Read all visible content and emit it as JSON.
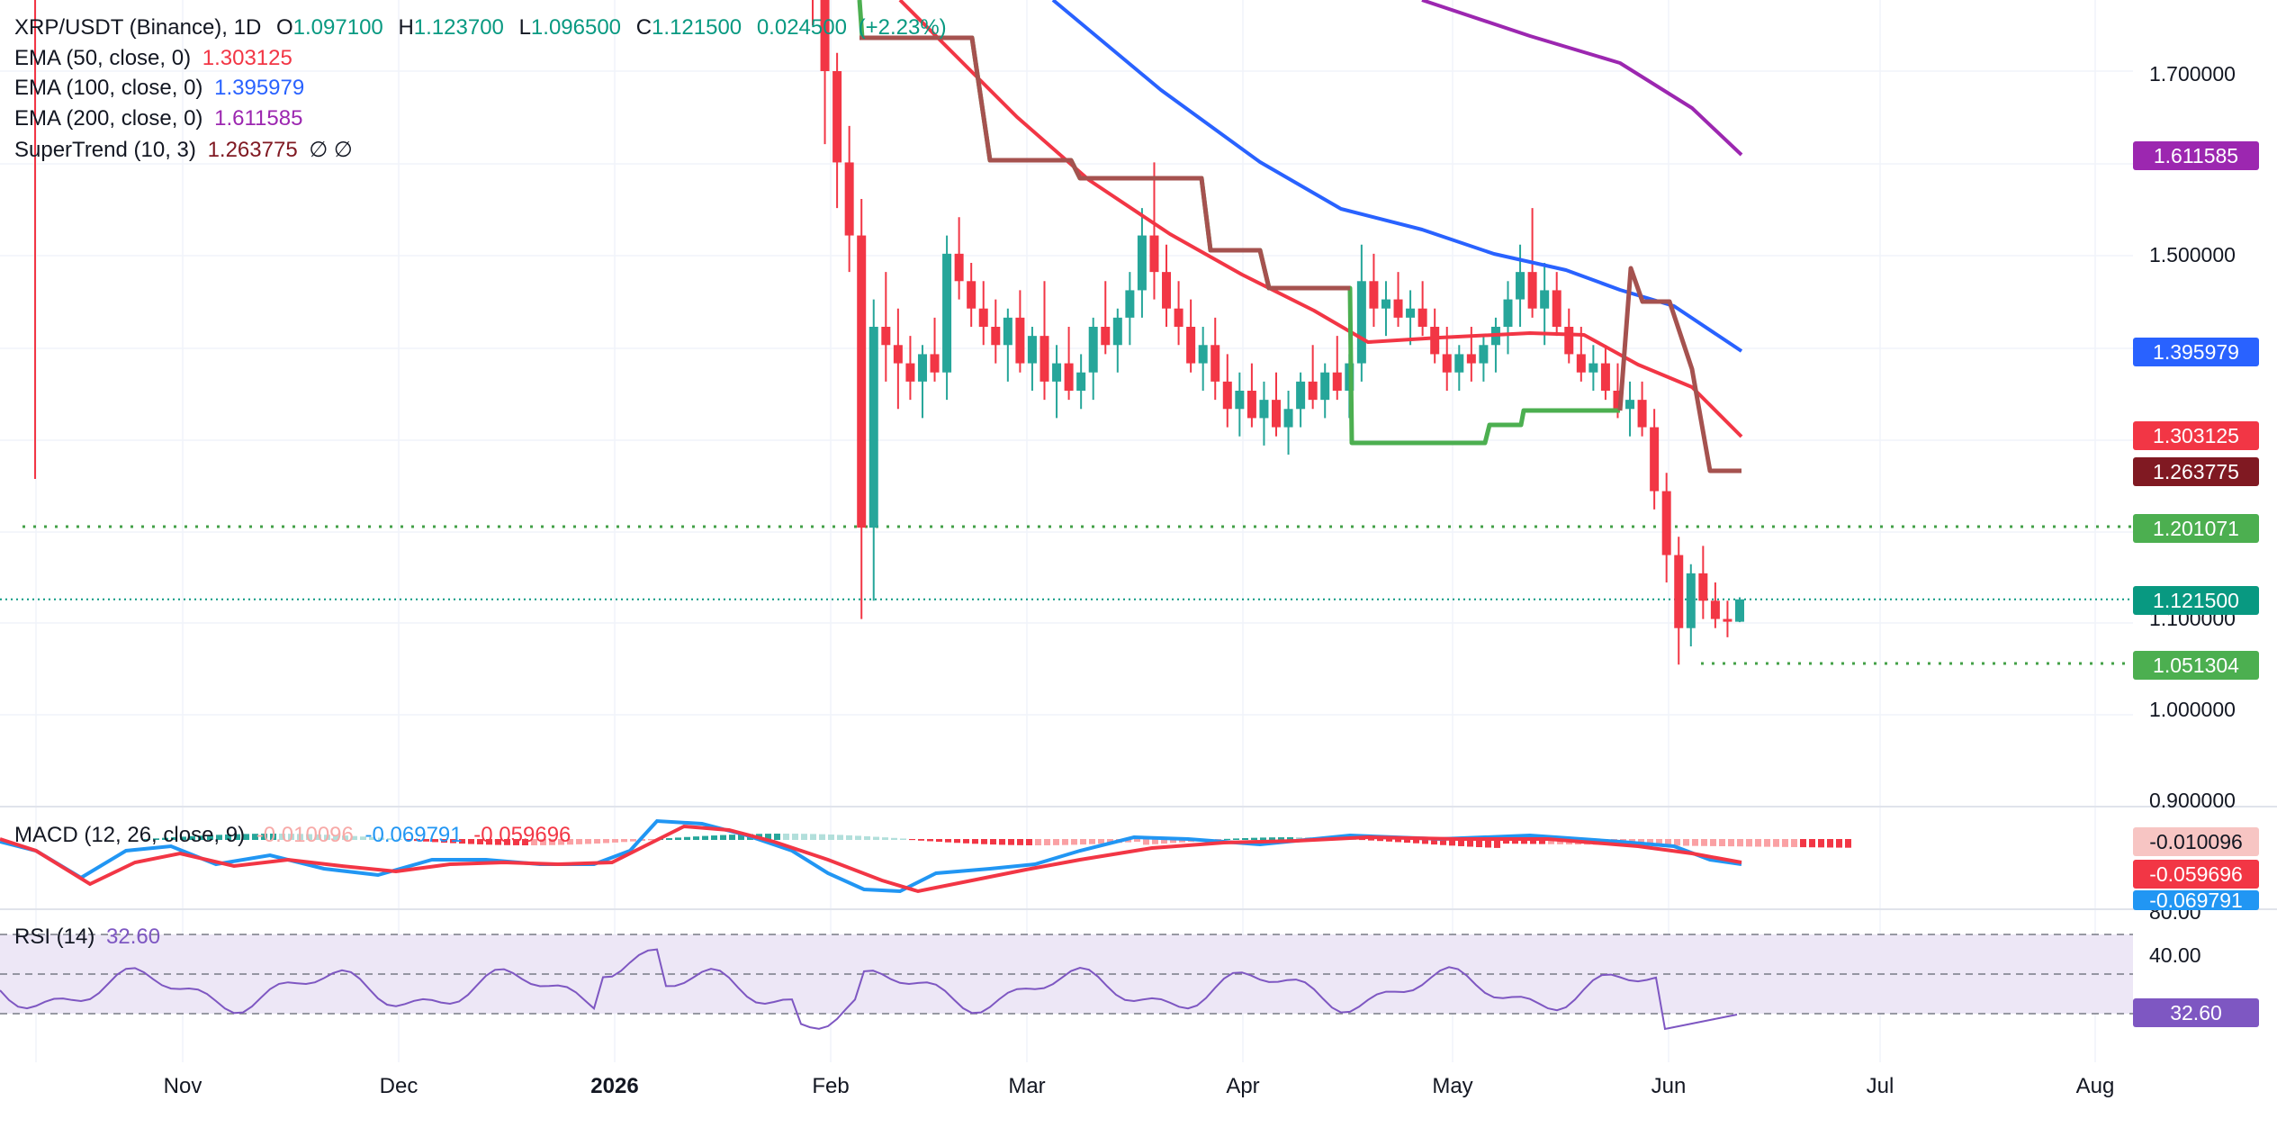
{
  "header": {
    "symbol": "XRP/USDT (Binance), 1D",
    "o_label": "O",
    "o": "1.097100",
    "h_label": "H",
    "h": "1.123700",
    "l_label": "L",
    "l": "1.096500",
    "c_label": "C",
    "c": "1.121500",
    "chg": "0.024500",
    "chg_pct": "(+2.23%)"
  },
  "indicators": {
    "ema50": {
      "label": "EMA (50, close, 0)",
      "value": "1.303125",
      "color": "#f23645"
    },
    "ema100": {
      "label": "EMA (100, close, 0)",
      "value": "1.395979",
      "color": "#2962ff"
    },
    "ema200": {
      "label": "EMA (200, close, 0)",
      "value": "1.611585",
      "color": "#9c27b0"
    },
    "supertrend": {
      "label": "SuperTrend (10, 3)",
      "value": "1.263775",
      "extra": "∅ ∅",
      "color": "#801922"
    },
    "macd": {
      "label": "MACD (12, 26, close, 9)",
      "hist": "-0.010096",
      "macd": "-0.069791",
      "signal": "-0.059696"
    },
    "rsi": {
      "label": "RSI (14)",
      "value": "32.60",
      "color": "#7e57c2"
    }
  },
  "badges": {
    "ema200": "1.611585",
    "ema100": "1.395979",
    "ema50": "1.303125",
    "supertrend": "1.263775",
    "resistance": "1.201071",
    "price": "1.121500",
    "support": "1.051304",
    "macd_hist": "-0.010096",
    "macd_signal": "-0.059696",
    "macd_line": "-0.069791",
    "rsi": "32.60"
  },
  "colors": {
    "up": "#26a69a",
    "down": "#f23645",
    "price_line": "#089981",
    "st_up": "#4caf50",
    "st_down": "#a5524f",
    "hline": "#43a047",
    "rsi_band": "#ede7f6",
    "macd_line": "#2196f3",
    "signal_line": "#f23645"
  },
  "chart_data": {
    "type": "candlestick",
    "title": "XRP/USDT (Binance), 1D",
    "y_ticks": [
      "1.700000",
      "1.500000",
      "1.100000",
      "1.000000",
      "0.900000"
    ],
    "ylim": [
      0.9,
      1.75
    ],
    "x_ticks": [
      "Nov",
      "Dec",
      "2026",
      "Feb",
      "Mar",
      "Apr",
      "May",
      "Jun",
      "Jul",
      "Aug"
    ],
    "horizontal_levels": [
      1.201071,
      1.051304
    ],
    "last_close": 1.1215,
    "ema50_last": 1.303125,
    "ema100_last": 1.395979,
    "ema200_last": 1.611585,
    "supertrend_last": 1.263775,
    "candles": [
      [
        1.92,
        1.96,
        1.75,
        1.78
      ],
      [
        1.78,
        1.8,
        1.62,
        1.7
      ],
      [
        1.7,
        1.72,
        1.55,
        1.6
      ],
      [
        1.6,
        1.64,
        1.48,
        1.52
      ],
      [
        1.52,
        1.56,
        1.1,
        1.2
      ],
      [
        1.2,
        1.45,
        1.12,
        1.42
      ],
      [
        1.42,
        1.48,
        1.36,
        1.4
      ],
      [
        1.4,
        1.44,
        1.33,
        1.38
      ],
      [
        1.38,
        1.41,
        1.34,
        1.36
      ],
      [
        1.36,
        1.4,
        1.32,
        1.39
      ],
      [
        1.39,
        1.43,
        1.36,
        1.37
      ],
      [
        1.37,
        1.52,
        1.34,
        1.5
      ],
      [
        1.5,
        1.54,
        1.45,
        1.47
      ],
      [
        1.47,
        1.49,
        1.42,
        1.44
      ],
      [
        1.44,
        1.47,
        1.4,
        1.42
      ],
      [
        1.42,
        1.45,
        1.38,
        1.4
      ],
      [
        1.4,
        1.44,
        1.36,
        1.43
      ],
      [
        1.43,
        1.46,
        1.37,
        1.38
      ],
      [
        1.38,
        1.42,
        1.35,
        1.41
      ],
      [
        1.41,
        1.47,
        1.34,
        1.36
      ],
      [
        1.36,
        1.4,
        1.32,
        1.38
      ],
      [
        1.38,
        1.42,
        1.34,
        1.35
      ],
      [
        1.35,
        1.39,
        1.33,
        1.37
      ],
      [
        1.37,
        1.43,
        1.34,
        1.42
      ],
      [
        1.42,
        1.47,
        1.39,
        1.4
      ],
      [
        1.4,
        1.44,
        1.37,
        1.43
      ],
      [
        1.43,
        1.48,
        1.4,
        1.46
      ],
      [
        1.46,
        1.55,
        1.43,
        1.52
      ],
      [
        1.52,
        1.6,
        1.45,
        1.48
      ],
      [
        1.48,
        1.51,
        1.42,
        1.44
      ],
      [
        1.44,
        1.47,
        1.4,
        1.42
      ],
      [
        1.42,
        1.45,
        1.37,
        1.38
      ],
      [
        1.38,
        1.42,
        1.35,
        1.4
      ],
      [
        1.4,
        1.43,
        1.34,
        1.36
      ],
      [
        1.36,
        1.39,
        1.31,
        1.33
      ],
      [
        1.33,
        1.37,
        1.3,
        1.35
      ],
      [
        1.35,
        1.38,
        1.31,
        1.32
      ],
      [
        1.32,
        1.36,
        1.29,
        1.34
      ],
      [
        1.34,
        1.37,
        1.3,
        1.31
      ],
      [
        1.31,
        1.35,
        1.28,
        1.33
      ],
      [
        1.33,
        1.37,
        1.31,
        1.36
      ],
      [
        1.36,
        1.4,
        1.33,
        1.34
      ],
      [
        1.34,
        1.38,
        1.32,
        1.37
      ],
      [
        1.37,
        1.41,
        1.34,
        1.35
      ],
      [
        1.35,
        1.39,
        1.32,
        1.38
      ],
      [
        1.38,
        1.51,
        1.36,
        1.47
      ],
      [
        1.47,
        1.5,
        1.42,
        1.44
      ],
      [
        1.44,
        1.47,
        1.41,
        1.45
      ],
      [
        1.45,
        1.48,
        1.42,
        1.43
      ],
      [
        1.43,
        1.46,
        1.4,
        1.44
      ],
      [
        1.44,
        1.47,
        1.41,
        1.42
      ],
      [
        1.42,
        1.44,
        1.38,
        1.39
      ],
      [
        1.39,
        1.42,
        1.35,
        1.37
      ],
      [
        1.37,
        1.4,
        1.35,
        1.39
      ],
      [
        1.39,
        1.42,
        1.36,
        1.38
      ],
      [
        1.38,
        1.41,
        1.36,
        1.4
      ],
      [
        1.4,
        1.43,
        1.37,
        1.42
      ],
      [
        1.42,
        1.47,
        1.39,
        1.45
      ],
      [
        1.45,
        1.51,
        1.42,
        1.48
      ],
      [
        1.48,
        1.55,
        1.43,
        1.44
      ],
      [
        1.44,
        1.49,
        1.4,
        1.46
      ],
      [
        1.46,
        1.48,
        1.41,
        1.42
      ],
      [
        1.42,
        1.44,
        1.38,
        1.39
      ],
      [
        1.39,
        1.42,
        1.36,
        1.37
      ],
      [
        1.37,
        1.4,
        1.35,
        1.38
      ],
      [
        1.38,
        1.4,
        1.34,
        1.35
      ],
      [
        1.35,
        1.38,
        1.32,
        1.33
      ],
      [
        1.33,
        1.36,
        1.3,
        1.34
      ],
      [
        1.34,
        1.36,
        1.3,
        1.31
      ],
      [
        1.31,
        1.33,
        1.22,
        1.24
      ],
      [
        1.24,
        1.26,
        1.14,
        1.17
      ],
      [
        1.17,
        1.19,
        1.05,
        1.09
      ],
      [
        1.09,
        1.16,
        1.07,
        1.15
      ],
      [
        1.15,
        1.18,
        1.1,
        1.12
      ],
      [
        1.12,
        1.14,
        1.09,
        1.1
      ],
      [
        1.1,
        1.12,
        1.08,
        1.097
      ],
      [
        1.097,
        1.1237,
        1.0965,
        1.1215
      ]
    ]
  }
}
